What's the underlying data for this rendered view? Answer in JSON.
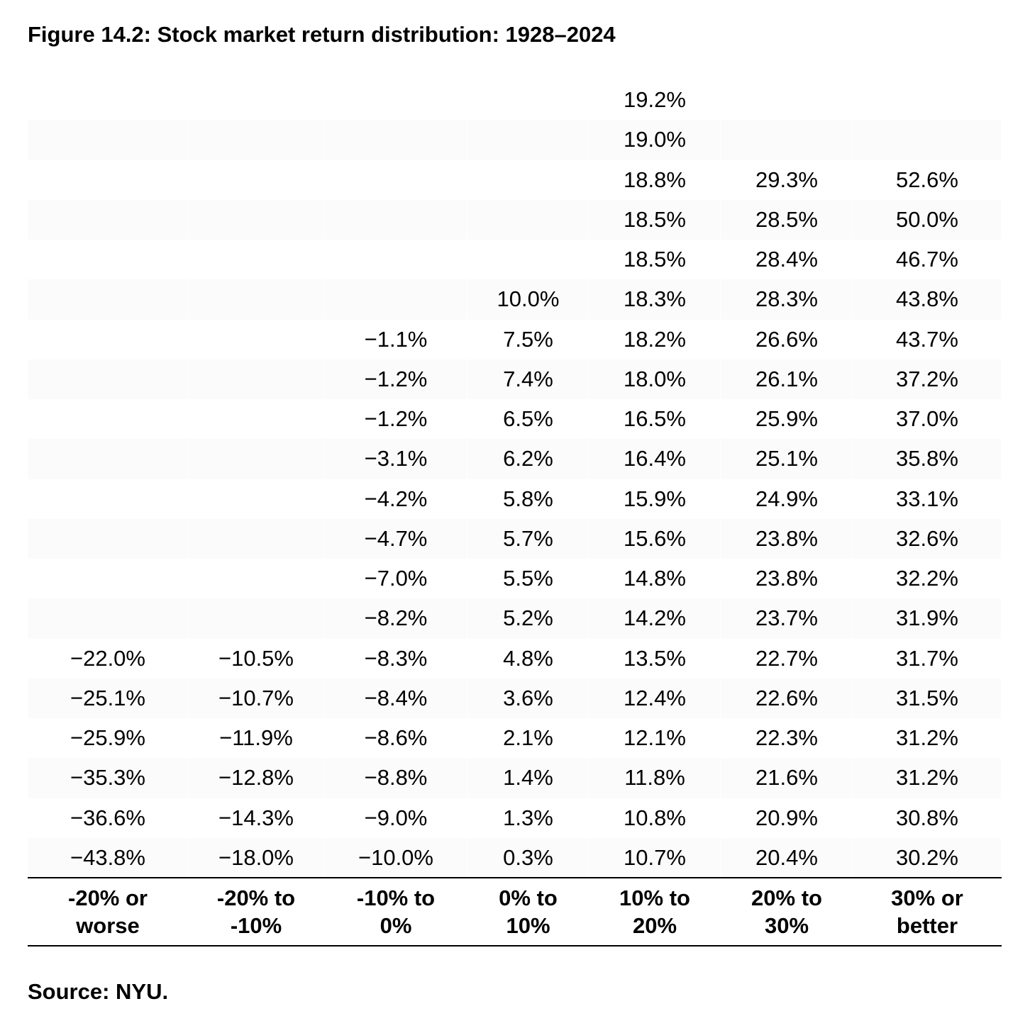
{
  "title": "Figure 14.2: Stock market return distribution: 1928–2024",
  "source": "Source: NYU.",
  "colors": {
    "text": "#000000",
    "band_shade": "#fbfbfb",
    "separator": "#ffffff"
  },
  "chart_data": {
    "type": "table",
    "title": "Figure 14.2: Stock market return distribution: 1928–2024",
    "rows_shown": 20,
    "columns": [
      {
        "label": "-20% or\nworse",
        "values": [
          "−22.0%",
          "−25.1%",
          "−25.9%",
          "−35.3%",
          "−36.6%",
          "−43.8%"
        ]
      },
      {
        "label": "-20% to\n-10%",
        "values": [
          "−10.5%",
          "−10.7%",
          "−11.9%",
          "−12.8%",
          "−14.3%",
          "−18.0%"
        ]
      },
      {
        "label": "-10% to\n0%",
        "values": [
          "−1.1%",
          "−1.2%",
          "−1.2%",
          "−3.1%",
          "−4.2%",
          "−4.7%",
          "−7.0%",
          "−8.2%",
          "−8.3%",
          "−8.4%",
          "−8.6%",
          "−8.8%",
          "−9.0%",
          "−10.0%"
        ]
      },
      {
        "label": "0% to\n10%",
        "values": [
          "10.0%",
          "7.5%",
          "7.4%",
          "6.5%",
          "6.2%",
          "5.8%",
          "5.7%",
          "5.5%",
          "5.2%",
          "4.8%",
          "3.6%",
          "2.1%",
          "1.4%",
          "1.3%",
          "0.3%"
        ]
      },
      {
        "label": "10% to\n20%",
        "values": [
          "19.2%",
          "19.0%",
          "18.8%",
          "18.5%",
          "18.5%",
          "18.3%",
          "18.2%",
          "18.0%",
          "16.5%",
          "16.4%",
          "15.9%",
          "15.6%",
          "14.8%",
          "14.2%",
          "13.5%",
          "12.4%",
          "12.1%",
          "11.8%",
          "10.8%",
          "10.7%"
        ]
      },
      {
        "label": "20% to\n30%",
        "values": [
          "29.3%",
          "28.5%",
          "28.4%",
          "28.3%",
          "26.6%",
          "26.1%",
          "25.9%",
          "25.1%",
          "24.9%",
          "23.8%",
          "23.8%",
          "23.7%",
          "22.7%",
          "22.6%",
          "22.3%",
          "21.6%",
          "20.9%",
          "20.4%"
        ]
      },
      {
        "label": "30% or\nbetter",
        "values": [
          "52.6%",
          "50.0%",
          "46.7%",
          "43.8%",
          "43.7%",
          "37.2%",
          "37.0%",
          "35.8%",
          "33.1%",
          "32.6%",
          "32.2%",
          "31.9%",
          "31.7%",
          "31.5%",
          "31.2%",
          "31.2%",
          "30.8%",
          "30.2%"
        ]
      }
    ]
  }
}
